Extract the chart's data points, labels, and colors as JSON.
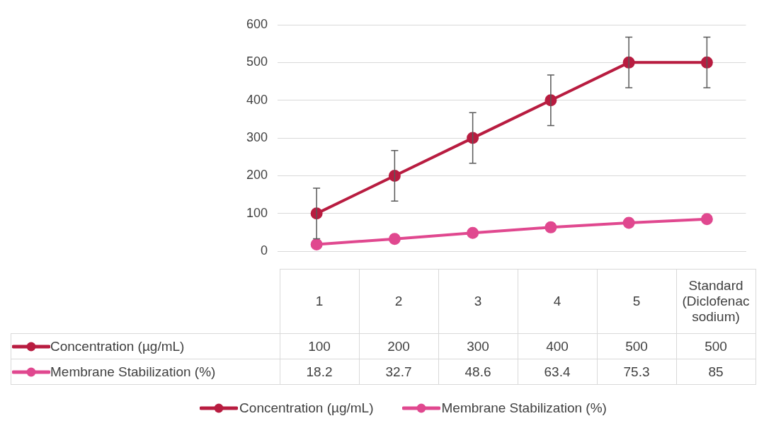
{
  "chart_data": {
    "type": "line",
    "categories": [
      "1",
      "2",
      "3",
      "4",
      "5",
      "Standard (Diclofenac sodium)"
    ],
    "series": [
      {
        "name": "Concentration (µg/mL)",
        "color": "#b81c40",
        "values": [
          100,
          200,
          300,
          400,
          500,
          500
        ],
        "errors": [
          67,
          67,
          67,
          67,
          67,
          67
        ]
      },
      {
        "name": "Membrane Stabilization (%)",
        "color": "#e0488f",
        "values": [
          18.2,
          32.7,
          48.6,
          63.4,
          75.3,
          85
        ]
      }
    ],
    "ylim": [
      0,
      600
    ],
    "yticks": [
      0,
      100,
      200,
      300,
      400,
      500,
      600
    ],
    "grid": "y",
    "marker": "circle",
    "data_labels": true,
    "legend": "bottom"
  }
}
